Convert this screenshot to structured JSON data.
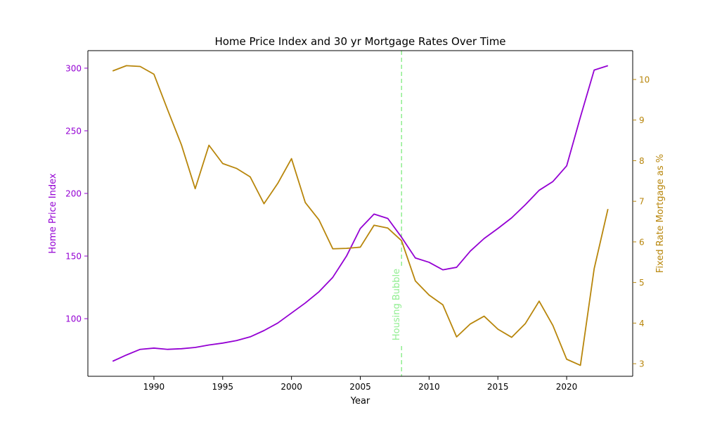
{
  "chart_data": {
    "type": "line",
    "title": "Home Price Index and 30 yr Mortgage Rates Over Time",
    "xlabel": "Year",
    "ylabel_left": "Home Price Index",
    "ylabel_right": "Fixed Rate Mortgage as %",
    "xlim": [
      1985.2,
      2024.8
    ],
    "ylim_left": [
      54,
      314
    ],
    "ylim_right": [
      2.69,
      10.71
    ],
    "x_ticks": [
      1990,
      1995,
      2000,
      2005,
      2010,
      2015,
      2020
    ],
    "y_ticks_left": [
      100,
      150,
      200,
      250,
      300
    ],
    "y_ticks_right": [
      3,
      4,
      5,
      6,
      7,
      8,
      9,
      10
    ],
    "grid": false,
    "x": [
      1987,
      1988,
      1989,
      1990,
      1991,
      1992,
      1993,
      1994,
      1995,
      1996,
      1997,
      1998,
      1999,
      2000,
      2001,
      2002,
      2003,
      2004,
      2005,
      2006,
      2007,
      2008,
      2009,
      2010,
      2011,
      2012,
      2013,
      2014,
      2015,
      2016,
      2017,
      2018,
      2019,
      2020,
      2021,
      2022,
      2023
    ],
    "series": [
      {
        "axis": "left",
        "color": "#9400d3",
        "values": [
          66,
          71,
          75.5,
          76.5,
          75.5,
          76,
          77,
          79,
          80.5,
          82.5,
          85.5,
          90.5,
          96.5,
          104.5,
          112.5,
          121.5,
          133,
          150,
          172,
          183.5,
          180,
          165,
          148.5,
          145,
          139,
          141,
          154,
          164,
          172,
          180.5,
          191,
          202.5,
          209.5,
          222,
          261,
          298.5,
          302
        ]
      },
      {
        "axis": "right",
        "color": "#b8860b",
        "values": [
          10.21,
          10.34,
          10.32,
          10.13,
          9.25,
          8.39,
          7.31,
          8.38,
          7.93,
          7.81,
          7.6,
          6.94,
          7.44,
          8.05,
          6.97,
          6.54,
          5.83,
          5.84,
          5.87,
          6.41,
          6.34,
          6.03,
          5.04,
          4.69,
          4.45,
          3.66,
          3.98,
          4.17,
          3.85,
          3.65,
          3.99,
          4.54,
          3.94,
          3.11,
          2.96,
          5.34,
          6.81
        ]
      }
    ],
    "annotations": [
      {
        "type": "vline",
        "x": 2008,
        "color": "#90ee90",
        "style": "dashed",
        "label": "Housing Bubble"
      }
    ]
  }
}
